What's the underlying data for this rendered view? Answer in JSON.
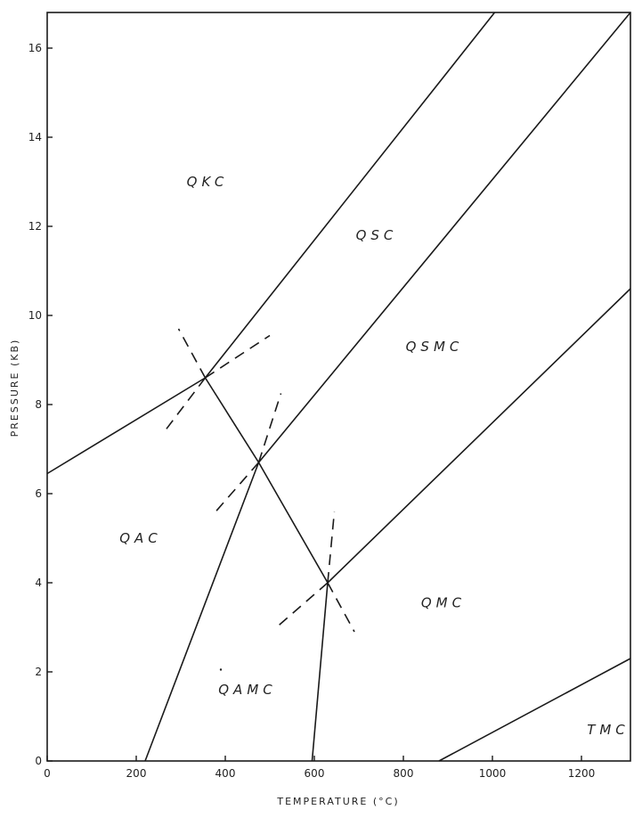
{
  "xaxis": {
    "label": "TEMPERATURE (°C)",
    "ticks": [
      0,
      200,
      400,
      600,
      800,
      1000,
      1200
    ],
    "range": [
      0,
      1310
    ]
  },
  "yaxis": {
    "label": "PRESSURE (KB)",
    "ticks": [
      0,
      2,
      4,
      6,
      8,
      10,
      12,
      14,
      16
    ],
    "range": [
      0,
      16.8
    ]
  },
  "fields": [
    {
      "id": "qkc",
      "text": "QKC",
      "t": 360,
      "p": 12.9
    },
    {
      "id": "qsc",
      "text": "QSC",
      "t": 740,
      "p": 11.7
    },
    {
      "id": "qsmc",
      "text": "QSMC",
      "t": 870,
      "p": 9.2
    },
    {
      "id": "qac",
      "text": "QAC",
      "t": 210,
      "p": 4.9
    },
    {
      "id": "qmc",
      "text": "QMC",
      "t": 890,
      "p": 3.45
    },
    {
      "id": "qamc",
      "text": "QAMC",
      "t": 450,
      "p": 1.5
    },
    {
      "id": "tmc",
      "text": "TMC",
      "t": 1260,
      "p": 0.6
    }
  ],
  "boundaries": [
    [
      [
        0,
        6.45
      ],
      [
        355,
        8.6
      ]
    ],
    [
      [
        355,
        8.6
      ],
      [
        1005,
        16.8
      ]
    ],
    [
      [
        355,
        8.6
      ],
      [
        475,
        6.7
      ]
    ],
    [
      [
        475,
        6.7
      ],
      [
        1310,
        16.8
      ]
    ],
    [
      [
        475,
        6.7
      ],
      [
        220,
        0
      ]
    ],
    [
      [
        475,
        6.7
      ],
      [
        630,
        4.0
      ]
    ],
    [
      [
        630,
        4.0
      ],
      [
        1310,
        10.6
      ]
    ],
    [
      [
        630,
        4.0
      ],
      [
        595,
        0
      ]
    ],
    [
      [
        880,
        0
      ],
      [
        1310,
        2.3
      ]
    ]
  ],
  "dashed": [
    [
      [
        355,
        8.6
      ],
      [
        295,
        9.7
      ]
    ],
    [
      [
        355,
        8.6
      ],
      [
        500,
        9.55
      ]
    ],
    [
      [
        355,
        8.6
      ],
      [
        260,
        7.35
      ]
    ],
    [
      [
        475,
        6.7
      ],
      [
        525,
        8.25
      ]
    ],
    [
      [
        475,
        6.7
      ],
      [
        370,
        5.5
      ]
    ],
    [
      [
        630,
        4.0
      ],
      [
        645,
        5.6
      ]
    ],
    [
      [
        630,
        4.0
      ],
      [
        690,
        2.9
      ]
    ],
    [
      [
        630,
        4.0
      ],
      [
        515,
        3.0
      ]
    ]
  ],
  "marks": [
    {
      "t": 390,
      "p": 2.05
    }
  ]
}
